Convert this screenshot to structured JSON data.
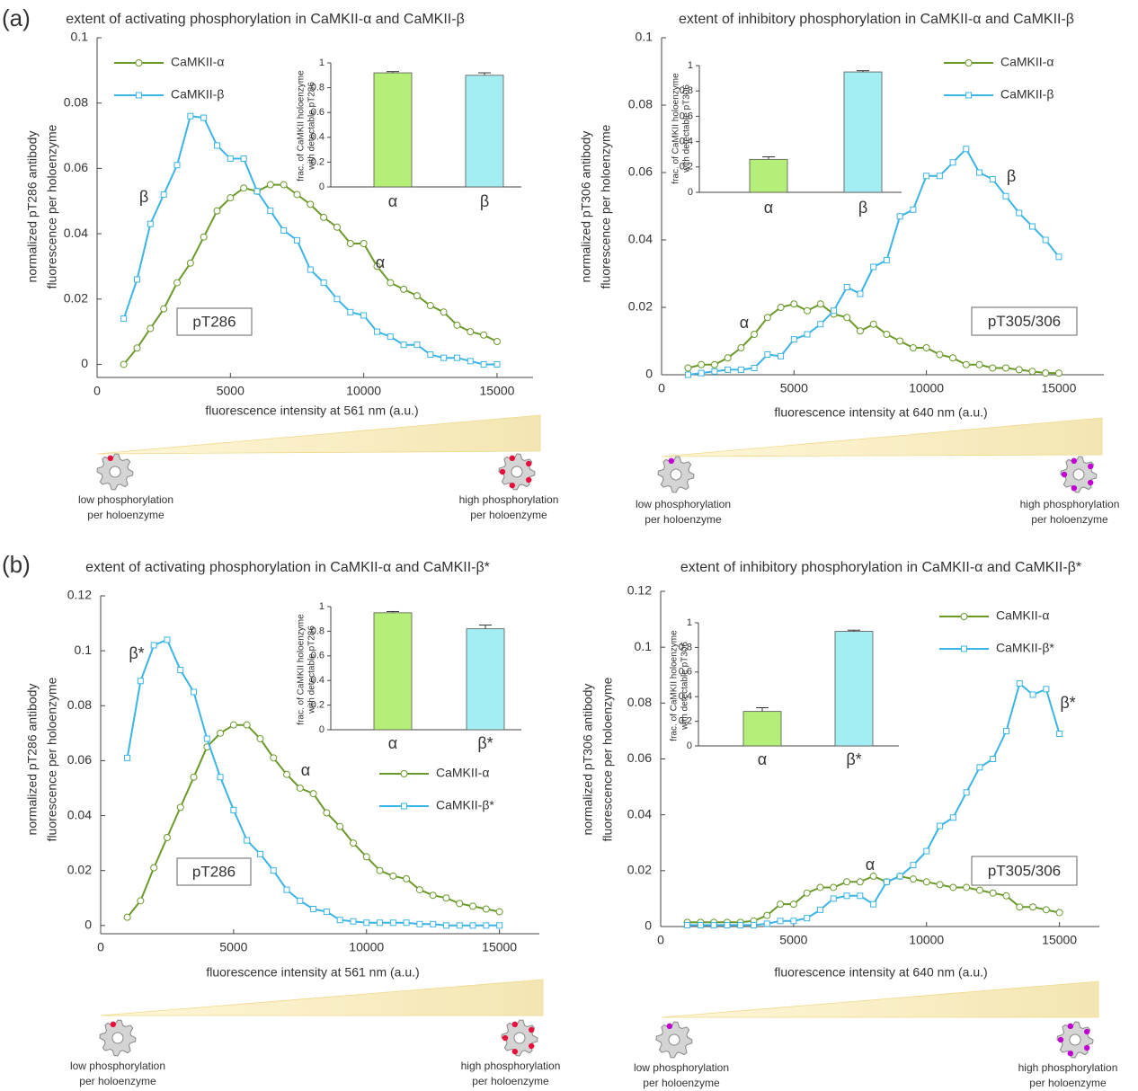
{
  "panel_labels": [
    "(a)",
    "(b)"
  ],
  "chart_data": [
    {
      "type": "line",
      "title": "extent of activating phosphorylation in CaMKII-α and CaMKII-β",
      "xlabel": "fluorescence intensity at 561 nm (a.u.)",
      "ylabel": [
        "normalized pT286 antibody",
        "fluorescence per holoenzyme"
      ],
      "legend": "upper left",
      "label_box": "pT286",
      "annotations": [
        "β",
        "α"
      ],
      "x": [
        1000,
        1500,
        2000,
        2500,
        3000,
        3500,
        4000,
        4500,
        5000,
        5500,
        6000,
        6500,
        7000,
        7500,
        8000,
        8500,
        9000,
        9500,
        10000,
        10500,
        11000,
        11500,
        12000,
        12500,
        13000,
        13500,
        14000,
        14500,
        15000
      ],
      "series": [
        {
          "name": "CaMKII-α",
          "color": "#6a9a2a",
          "marker": "circle",
          "values": [
            0,
            0.005,
            0.011,
            0.017,
            0.025,
            0.031,
            0.039,
            0.047,
            0.051,
            0.054,
            0.053,
            0.055,
            0.055,
            0.052,
            0.049,
            0.045,
            0.042,
            0.037,
            0.037,
            0.03,
            0.025,
            0.023,
            0.021,
            0.018,
            0.016,
            0.012,
            0.01,
            0.009,
            0.007
          ]
        },
        {
          "name": "CaMKII-β",
          "color": "#3bb4e6",
          "marker": "square",
          "values": [
            0.014,
            0.026,
            0.043,
            0.052,
            0.061,
            0.076,
            0.0755,
            0.067,
            0.063,
            0.063,
            0.053,
            0.047,
            0.041,
            0.038,
            0.029,
            0.025,
            0.02,
            0.016,
            0.015,
            0.01,
            0.0085,
            0.006,
            0.006,
            0.003,
            0.002,
            0.002,
            0.001,
            0,
            0
          ]
        }
      ],
      "xlim": [
        0,
        16350
      ],
      "xticks": [
        0,
        5000,
        10000,
        15000
      ],
      "ylim": [
        -0.004,
        0.1
      ],
      "yticks": [
        0,
        0.02,
        0.04,
        0.06,
        0.08,
        0.1
      ],
      "grid": false,
      "scale_labels": {
        "low": [
          "low phosphorylation",
          "per holoenzyme"
        ],
        "high": [
          "high phosphorylation",
          "per holoenzyme"
        ]
      },
      "inset": {
        "type": "bar",
        "ylabel": [
          "frac. of CaMKII holoenzyme",
          "with detectable pT286"
        ],
        "categories": [
          "α",
          "β"
        ],
        "values": [
          0.92,
          0.9
        ],
        "errors": [
          0.01,
          0.02
        ],
        "colors": [
          "#b5ef77",
          "#a3eef3"
        ],
        "ylim": [
          0,
          1
        ],
        "yticks": [
          0,
          0.2,
          0.4,
          0.6,
          0.8,
          1
        ]
      }
    },
    {
      "type": "line",
      "title": "extent of inhibitory phosphorylation in CaMKII-α and CaMKII-β",
      "xlabel": "fluorescence intensity at 640 nm (a.u.)",
      "ylabel": [
        "normalized pT306 antibody",
        "fluorescence per holoenzyme"
      ],
      "legend": "upper right",
      "label_box": "pT305/306",
      "annotations": [
        "α",
        "β"
      ],
      "x": [
        1000,
        1500,
        2000,
        2500,
        3000,
        3500,
        4000,
        4500,
        5000,
        5500,
        6000,
        6500,
        7000,
        7500,
        8000,
        8500,
        9000,
        9500,
        10000,
        10500,
        11000,
        11500,
        12000,
        12500,
        13000,
        13500,
        14000,
        14500,
        15000
      ],
      "series": [
        {
          "name": "CaMKII-α",
          "color": "#6a9a2a",
          "marker": "circle",
          "values": [
            0.002,
            0.003,
            0.003,
            0.005,
            0.008,
            0.012,
            0.017,
            0.02,
            0.021,
            0.019,
            0.021,
            0.018,
            0.017,
            0.013,
            0.015,
            0.012,
            0.01,
            0.008,
            0.008,
            0.006,
            0.005,
            0.003,
            0.003,
            0.002,
            0.002,
            0.0015,
            0.001,
            0.0005,
            0.0005
          ]
        },
        {
          "name": "CaMKII-β",
          "color": "#3bb4e6",
          "marker": "square",
          "values": [
            0,
            0.0005,
            0.001,
            0.0015,
            0.0015,
            0.002,
            0.006,
            0.0055,
            0.0105,
            0.012,
            0.015,
            0.019,
            0.026,
            0.024,
            0.032,
            0.034,
            0.047,
            0.049,
            0.059,
            0.059,
            0.063,
            0.067,
            0.06,
            0.058,
            0.053,
            0.048,
            0.044,
            0.04,
            0.035
          ]
        }
      ],
      "xlim": [
        0,
        16700
      ],
      "xticks": [
        0,
        5000,
        10000,
        15000
      ],
      "ylim": [
        0,
        0.1
      ],
      "yticks": [
        0,
        0.02,
        0.04,
        0.06,
        0.08,
        0.1
      ],
      "grid": false,
      "scale_labels": {
        "low": [
          "low phosphorylation",
          "per holoenzyme"
        ],
        "high": [
          "high phosphorylation",
          "per holoenzyme"
        ]
      },
      "inset": {
        "type": "bar",
        "ylabel": [
          "frac. of CaMKII holoenzyme",
          "with detectable pT306"
        ],
        "categories": [
          "α",
          "β"
        ],
        "values": [
          0.26,
          0.95
        ],
        "errors": [
          0.02,
          0.01
        ],
        "colors": [
          "#b5ef77",
          "#a3eef3"
        ],
        "ylim": [
          0,
          1
        ],
        "yticks": [
          0,
          0.2,
          0.4,
          0.6,
          0.8,
          1
        ]
      }
    },
    {
      "type": "line",
      "title": "extent of activating phosphorylation in CaMKII-α and CaMKII-β*",
      "xlabel": "fluorescence intensity at 561 nm (a.u.)",
      "ylabel": [
        "normalized pT286 antibody",
        "fluorescence per holoenzyme"
      ],
      "legend": "center right",
      "label_box": "pT286",
      "annotations": [
        "β*",
        "α"
      ],
      "x": [
        1000,
        1500,
        2000,
        2500,
        3000,
        3500,
        4000,
        4500,
        5000,
        5500,
        6000,
        6500,
        7000,
        7500,
        8000,
        8500,
        9000,
        9500,
        10000,
        10500,
        11000,
        11500,
        12000,
        12500,
        13000,
        13500,
        14000,
        14500,
        15000
      ],
      "series": [
        {
          "name": "CaMKII-α",
          "color": "#6a9a2a",
          "marker": "circle",
          "values": [
            0.003,
            0.009,
            0.021,
            0.032,
            0.043,
            0.054,
            0.065,
            0.07,
            0.073,
            0.073,
            0.068,
            0.061,
            0.055,
            0.05,
            0.048,
            0.041,
            0.036,
            0.03,
            0.025,
            0.02,
            0.018,
            0.017,
            0.013,
            0.011,
            0.01,
            0.008,
            0.007,
            0.006,
            0.005
          ]
        },
        {
          "name": "CaMKII-β*",
          "color": "#3bb4e6",
          "marker": "square",
          "values": [
            0.061,
            0.089,
            0.102,
            0.104,
            0.093,
            0.085,
            0.068,
            0.054,
            0.042,
            0.031,
            0.026,
            0.02,
            0.013,
            0.009,
            0.006,
            0.005,
            0.002,
            0.0015,
            0.001,
            0.001,
            0.001,
            0.001,
            0.0005,
            0.0005,
            0,
            0,
            0,
            0,
            0
          ]
        }
      ],
      "xlim": [
        0,
        16500
      ],
      "xticks": [
        0,
        5000,
        10000,
        15000
      ],
      "ylim": [
        -0.003,
        0.12
      ],
      "yticks": [
        0,
        0.02,
        0.04,
        0.06,
        0.08,
        0.1,
        0.12
      ],
      "grid": false,
      "scale_labels": {
        "low": [
          "low phosphorylation",
          "per holoenzyme"
        ],
        "high": [
          "high phosphorylation",
          "per holoenzyme"
        ]
      },
      "inset": {
        "type": "bar",
        "ylabel": [
          "frac. of CaMKII holoenzyme",
          "with detectable pT286"
        ],
        "categories": [
          "α",
          "β*"
        ],
        "values": [
          0.95,
          0.82
        ],
        "errors": [
          0.01,
          0.03
        ],
        "colors": [
          "#b5ef77",
          "#a3eef3"
        ],
        "ylim": [
          0,
          1
        ],
        "yticks": [
          0,
          0.2,
          0.4,
          0.6,
          0.8,
          1
        ]
      }
    },
    {
      "type": "line",
      "title": "extent of inhibitory phosphorylation in CaMKII-α and CaMKII-β*",
      "xlabel": "fluorescence intensity at 640 nm (a.u.)",
      "ylabel": [
        "normalized pT306 antibody",
        "fluorescence per holoenzyme"
      ],
      "legend": "upper right",
      "label_box": "pT305/306",
      "annotations": [
        "α",
        "β*"
      ],
      "x": [
        1000,
        1500,
        2000,
        2500,
        3000,
        3500,
        4000,
        4500,
        5000,
        5500,
        6000,
        6500,
        7000,
        7500,
        8000,
        8500,
        9000,
        9500,
        10000,
        10500,
        11000,
        11500,
        12000,
        12500,
        13000,
        13500,
        14000,
        14500,
        15000
      ],
      "series": [
        {
          "name": "CaMKII-α",
          "color": "#6a9a2a",
          "marker": "circle",
          "values": [
            0.0015,
            0.0015,
            0.0015,
            0.0015,
            0.0015,
            0.002,
            0.004,
            0.008,
            0.008,
            0.012,
            0.014,
            0.014,
            0.016,
            0.016,
            0.018,
            0.016,
            0.018,
            0.017,
            0.016,
            0.015,
            0.014,
            0.014,
            0.013,
            0.012,
            0.011,
            0.007,
            0.007,
            0.006,
            0.005
          ]
        },
        {
          "name": "CaMKII-β*",
          "color": "#3bb4e6",
          "marker": "square",
          "values": [
            0.0005,
            0.0005,
            0.0005,
            0.0005,
            0.0005,
            0.0005,
            0.001,
            0.002,
            0.002,
            0.003,
            0.006,
            0.01,
            0.011,
            0.011,
            0.008,
            0.016,
            0.018,
            0.022,
            0.027,
            0.036,
            0.039,
            0.048,
            0.057,
            0.06,
            0.07,
            0.087,
            0.083,
            0.085,
            0.069
          ]
        }
      ],
      "xlim": [
        0,
        16500
      ],
      "xticks": [
        0,
        5000,
        10000,
        15000
      ],
      "ylim": [
        0,
        0.12
      ],
      "yticks": [
        0,
        0.02,
        0.04,
        0.06,
        0.08,
        0.1,
        0.12
      ],
      "grid": false,
      "scale_labels": {
        "low": [
          "low phosphorylation",
          "per holoenzyme"
        ],
        "high": [
          "high phosphorylation",
          "per holoenzyme"
        ]
      },
      "inset": {
        "type": "bar",
        "ylabel": [
          "frac. of CaMKII holoenzyme",
          "with detectable pT306"
        ],
        "categories": [
          "α",
          "β*"
        ],
        "values": [
          0.28,
          0.93
        ],
        "errors": [
          0.03,
          0.01
        ],
        "colors": [
          "#b5ef77",
          "#a3eef3"
        ],
        "ylim": [
          0,
          1
        ],
        "yticks": [
          0,
          0.2,
          0.4,
          0.6,
          0.8,
          1
        ]
      }
    }
  ]
}
